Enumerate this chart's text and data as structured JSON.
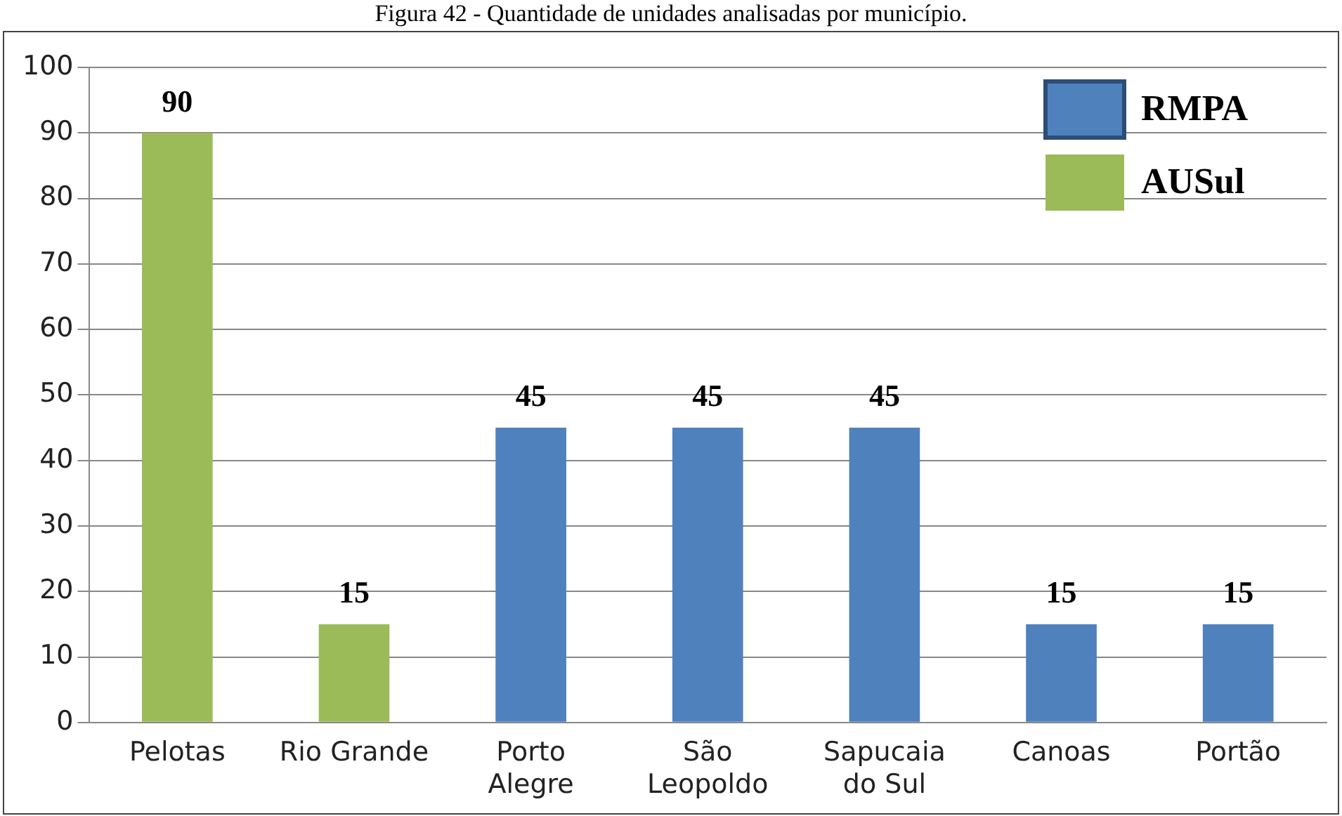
{
  "chart_data": {
    "type": "bar",
    "title": "Figura 42 - Quantidade de unidades analisadas por município.",
    "categories": [
      "Pelotas",
      "Rio Grande",
      "Porto Alegre",
      "São Leopoldo",
      "Sapucaia do Sul",
      "Canoas",
      "Portão"
    ],
    "series": [
      {
        "name": "RMPA",
        "color": "#4f81bd",
        "values": [
          null,
          null,
          45,
          45,
          45,
          15,
          15
        ]
      },
      {
        "name": "AUSul",
        "color": "#9bbb59",
        "values": [
          90,
          15,
          null,
          null,
          null,
          null,
          null
        ]
      }
    ],
    "ylim": [
      0,
      100
    ],
    "yticks": [
      0,
      10,
      20,
      30,
      40,
      50,
      60,
      70,
      80,
      90,
      100
    ],
    "grid": "y",
    "legend": "top right",
    "data_labels": true
  }
}
